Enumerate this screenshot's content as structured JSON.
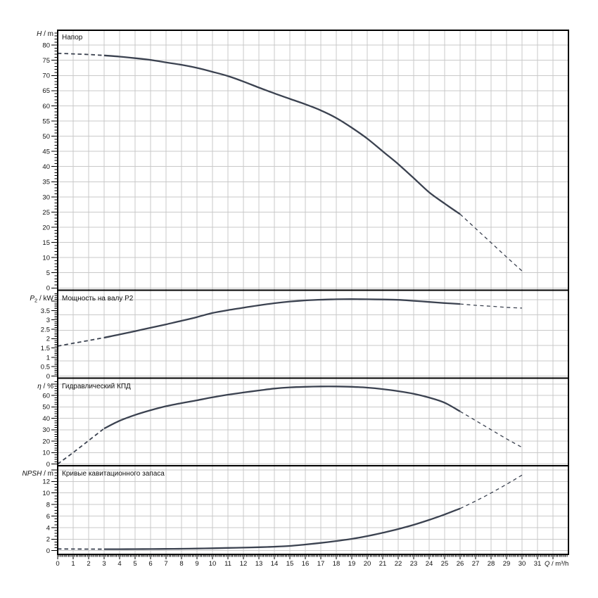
{
  "page": {
    "background": "#ffffff"
  },
  "chart_data": {
    "type": "line",
    "description": "Pump performance curves: head, shaft power, hydraulic efficiency and NPSH versus flow rate",
    "q_values": [
      0,
      1,
      2,
      3,
      4,
      5,
      6,
      7,
      8,
      9,
      10,
      11,
      12,
      13,
      14,
      15,
      16,
      17,
      18,
      19,
      20,
      21,
      22,
      23,
      24,
      25,
      26,
      27,
      28,
      29,
      30
    ],
    "solid_q_range": [
      3,
      26
    ],
    "dashed_q_ranges": [
      [
        0,
        3
      ],
      [
        26,
        30
      ]
    ],
    "x_axis": {
      "label_var": "Q",
      "label_rest": " / m³/h",
      "tick_labels": [
        "0",
        "1",
        "2",
        "3",
        "4",
        "5",
        "6",
        "7",
        "8",
        "9",
        "10",
        "11",
        "12",
        "13",
        "14",
        "15",
        "16",
        "17",
        "18",
        "19",
        "20",
        "21",
        "22",
        "23",
        "24",
        "25",
        "26",
        "27",
        "28",
        "29",
        "30",
        "31"
      ],
      "min": 0,
      "max": 33,
      "minor_step": 0.1,
      "major_step": 1
    },
    "colors": {
      "curve": "#3b4250",
      "grid": "#c9c9c9",
      "frame": "#000000",
      "text": "#111111"
    },
    "subplots": [
      {
        "name": "head",
        "title": "Напор",
        "axis_var": "H",
        "axis_rest": " / m",
        "ylabel": "H / m",
        "y_tick_labels": [
          "0",
          "5",
          "10",
          "15",
          "20",
          "25",
          "30",
          "35",
          "40",
          "45",
          "50",
          "55",
          "60",
          "65",
          "70",
          "75",
          "80"
        ],
        "y_label_step": 5,
        "y_minor_step": 1,
        "ylim": [
          0,
          85
        ],
        "values": [
          77.3,
          77.1,
          76.9,
          76.6,
          76.2,
          75.7,
          75.1,
          74.3,
          73.5,
          72.5,
          71.2,
          69.8,
          68,
          66,
          64.1,
          62.3,
          60.5,
          58.5,
          56,
          52.8,
          49.2,
          45,
          40.8,
          36.2,
          31.5,
          27.8,
          24.3,
          19.6,
          14.9,
          10.2,
          5.6
        ]
      },
      {
        "name": "shaft-power",
        "title": "Мощность на валу P2",
        "axis_var": "P",
        "axis_sub": "2",
        "axis_rest": " / kW",
        "ylabel": "P2 / kW",
        "y_tick_labels": [
          "0",
          "0.5",
          "1",
          "1.5",
          "2",
          "2.5",
          "3",
          "3.5"
        ],
        "y_label_step": 0.5,
        "y_minor_step": 0.1,
        "ylim": [
          0,
          4.5
        ],
        "values": [
          1.6,
          1.75,
          1.9,
          2.05,
          2.22,
          2.4,
          2.58,
          2.76,
          2.95,
          3.15,
          3.37,
          3.52,
          3.65,
          3.78,
          3.89,
          3.98,
          4.04,
          4.08,
          4.1,
          4.11,
          4.1,
          4.09,
          4.07,
          4.02,
          3.96,
          3.9,
          3.85,
          3.78,
          3.73,
          3.67,
          3.63
        ]
      },
      {
        "name": "efficiency",
        "title": "Гидравлический КПД",
        "axis_var": "η",
        "axis_rest": " / %",
        "ylabel": "η / %",
        "y_tick_labels": [
          "0",
          "10",
          "20",
          "30",
          "40",
          "50",
          "60"
        ],
        "y_label_step": 10,
        "y_minor_step": 2,
        "ylim": [
          0,
          75
        ],
        "values": [
          0,
          10,
          20.5,
          31,
          37.8,
          42.9,
          47,
          50.5,
          53.2,
          55.7,
          58.3,
          60.6,
          62.5,
          64.3,
          66,
          67,
          67.5,
          67.8,
          67.8,
          67.5,
          66.8,
          65.5,
          63.7,
          61.4,
          58.1,
          53.6,
          46,
          38,
          30,
          22,
          14.5
        ]
      },
      {
        "name": "npsh",
        "title": "Кривые кавитационного запаса",
        "axis_var": "NPSH",
        "axis_rest": " / m",
        "ylabel": "NPSH / m",
        "y_tick_labels": [
          "0",
          "2",
          "4",
          "6",
          "8",
          "10",
          "12"
        ],
        "y_label_step": 2,
        "y_minor_step": 0.5,
        "ylim": [
          0,
          14.5
        ],
        "values": [
          0.3,
          0.28,
          0.27,
          0.26,
          0.26,
          0.27,
          0.28,
          0.3,
          0.33,
          0.37,
          0.42,
          0.47,
          0.53,
          0.6,
          0.68,
          0.82,
          1.06,
          1.34,
          1.67,
          2.04,
          2.52,
          3.1,
          3.74,
          4.48,
          5.33,
          6.27,
          7.3,
          8.6,
          10,
          11.5,
          13.1
        ]
      }
    ]
  }
}
